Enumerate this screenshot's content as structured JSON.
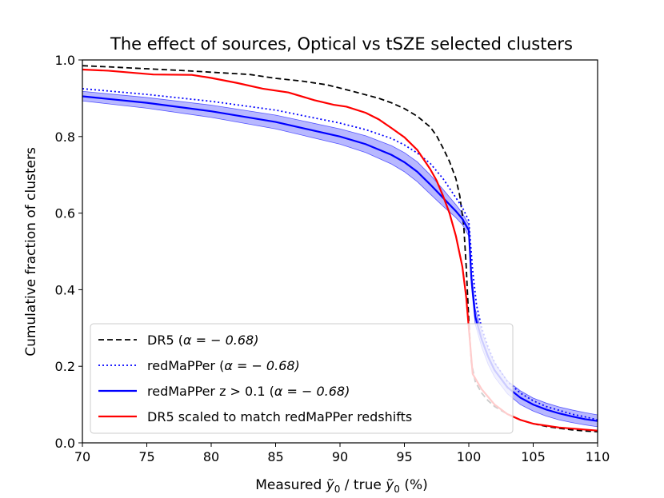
{
  "chart_data": {
    "type": "line",
    "title": "The effect of sources,  Optical vs tSZE selected clusters",
    "xlabel_pre": "Measured ",
    "xlabel_mid": " / true ",
    "xlabel_post": " (%)",
    "ylabel": "Cumulative fraction of clusters",
    "xlim": [
      70,
      110
    ],
    "ylim": [
      0.0,
      1.0
    ],
    "xticks": [
      70,
      75,
      80,
      85,
      90,
      95,
      100,
      105,
      110
    ],
    "yticks": [
      0.0,
      0.2,
      0.4,
      0.6,
      0.8,
      1.0
    ],
    "xtick_labels": [
      "70",
      "75",
      "80",
      "85",
      "90",
      "95",
      "100",
      "105",
      "110"
    ],
    "ytick_labels": [
      "0.0",
      "0.2",
      "0.4",
      "0.6",
      "0.8",
      "1.0"
    ],
    "grid": false,
    "legend_position": "lower-left",
    "series": [
      {
        "name": "DR5 (α = −0.68)",
        "legend_pre": "DR5 (",
        "legend_post": "α = − 0.68)",
        "color": "#000000",
        "style": "dashed",
        "x": [
          70,
          72,
          75,
          78,
          80,
          83,
          85,
          87,
          89,
          91,
          93,
          94,
          95,
          96,
          97,
          97.5,
          98,
          98.5,
          99,
          99.3,
          99.6,
          99.8,
          100,
          100.2,
          100.5,
          101,
          101.5,
          102,
          103,
          104,
          105,
          106,
          107,
          108,
          109,
          110
        ],
        "y": [
          0.985,
          0.982,
          0.977,
          0.972,
          0.968,
          0.962,
          0.952,
          0.945,
          0.935,
          0.918,
          0.9,
          0.888,
          0.873,
          0.853,
          0.825,
          0.802,
          0.77,
          0.735,
          0.69,
          0.645,
          0.57,
          0.46,
          0.32,
          0.21,
          0.16,
          0.13,
          0.11,
          0.095,
          0.075,
          0.06,
          0.05,
          0.043,
          0.038,
          0.034,
          0.031,
          0.029
        ]
      },
      {
        "name": "redMaPPer (α = −0.68)",
        "legend_pre": "redMaPPer (",
        "legend_post": "α = − 0.68)",
        "color": "#0000ff",
        "style": "dotted",
        "x": [
          70,
          75,
          80,
          85,
          90,
          92,
          94,
          95,
          96,
          97,
          98,
          99,
          99.5,
          100,
          100.3,
          100.6,
          101,
          101.5,
          102,
          103,
          104,
          105,
          106,
          107,
          108,
          109,
          110
        ],
        "y": [
          0.925,
          0.91,
          0.892,
          0.869,
          0.835,
          0.818,
          0.795,
          0.778,
          0.757,
          0.73,
          0.69,
          0.64,
          0.615,
          0.58,
          0.45,
          0.36,
          0.3,
          0.25,
          0.21,
          0.16,
          0.13,
          0.11,
          0.095,
          0.085,
          0.075,
          0.068,
          0.06
        ]
      },
      {
        "name": "redMaPPer z > 0.1 (α = −0.68)",
        "legend_pre": "redMaPPer z > 0.1 (",
        "legend_post": "α = − 0.68)",
        "color": "#0000ff",
        "style": "solid",
        "band_color": "#3333ff",
        "x": [
          70,
          75,
          80,
          85,
          90,
          92,
          94,
          95,
          96,
          97,
          98,
          99,
          99.5,
          100,
          100.2,
          100.5,
          101,
          101.5,
          102,
          103,
          104,
          105,
          106,
          107,
          108,
          109,
          110
        ],
        "y": [
          0.905,
          0.888,
          0.866,
          0.838,
          0.8,
          0.78,
          0.752,
          0.733,
          0.708,
          0.675,
          0.64,
          0.605,
          0.585,
          0.555,
          0.43,
          0.33,
          0.27,
          0.225,
          0.19,
          0.145,
          0.118,
          0.1,
          0.087,
          0.077,
          0.069,
          0.062,
          0.057
        ],
        "y_low": [
          0.893,
          0.874,
          0.85,
          0.82,
          0.78,
          0.758,
          0.728,
          0.708,
          0.682,
          0.65,
          0.618,
          0.588,
          0.57,
          0.54,
          0.41,
          0.31,
          0.25,
          0.205,
          0.172,
          0.128,
          0.1,
          0.083,
          0.07,
          0.06,
          0.053,
          0.047,
          0.042
        ],
        "y_high": [
          0.918,
          0.902,
          0.882,
          0.856,
          0.82,
          0.802,
          0.776,
          0.758,
          0.734,
          0.7,
          0.662,
          0.622,
          0.6,
          0.57,
          0.45,
          0.35,
          0.29,
          0.245,
          0.208,
          0.162,
          0.136,
          0.117,
          0.104,
          0.094,
          0.086,
          0.079,
          0.073
        ]
      },
      {
        "name": "DR5 scaled to match redMaPPer redshifts",
        "legend_pre": "DR5 scaled to match redMaPPer redshifts",
        "legend_post": "",
        "color": "#ff0000",
        "style": "solid",
        "x": [
          70,
          72,
          75.5,
          78.5,
          80,
          82,
          84,
          86,
          88,
          89.5,
          90.5,
          92,
          93,
          94,
          95,
          96,
          96.5,
          97,
          97.5,
          98,
          98.5,
          99,
          99.5,
          99.8,
          100,
          100.3,
          101,
          102,
          103,
          104,
          105,
          107,
          110
        ],
        "y": [
          0.975,
          0.972,
          0.962,
          0.961,
          0.953,
          0.94,
          0.925,
          0.915,
          0.895,
          0.883,
          0.878,
          0.862,
          0.845,
          0.822,
          0.798,
          0.765,
          0.74,
          0.715,
          0.685,
          0.645,
          0.6,
          0.54,
          0.46,
          0.38,
          0.3,
          0.18,
          0.14,
          0.1,
          0.075,
          0.06,
          0.05,
          0.04,
          0.032
        ]
      }
    ]
  }
}
